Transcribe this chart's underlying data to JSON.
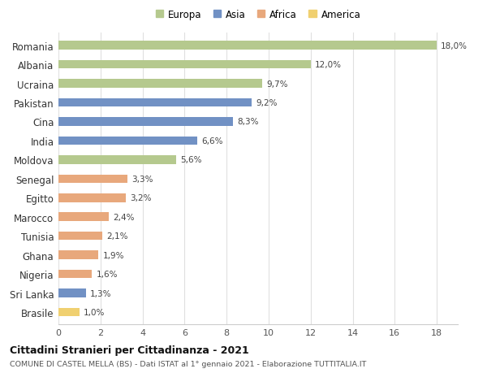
{
  "countries": [
    "Romania",
    "Albania",
    "Ucraina",
    "Pakistan",
    "Cina",
    "India",
    "Moldova",
    "Senegal",
    "Egitto",
    "Marocco",
    "Tunisia",
    "Ghana",
    "Nigeria",
    "Sri Lanka",
    "Brasile"
  ],
  "values": [
    18.0,
    12.0,
    9.7,
    9.2,
    8.3,
    6.6,
    5.6,
    3.3,
    3.2,
    2.4,
    2.1,
    1.9,
    1.6,
    1.3,
    1.0
  ],
  "continents": [
    "Europa",
    "Europa",
    "Europa",
    "Asia",
    "Asia",
    "Asia",
    "Europa",
    "Africa",
    "Africa",
    "Africa",
    "Africa",
    "Africa",
    "Africa",
    "Asia",
    "America"
  ],
  "colors": {
    "Europa": "#b5c98e",
    "Asia": "#7191c4",
    "Africa": "#e8a87c",
    "America": "#f0d070"
  },
  "legend_order": [
    "Europa",
    "Asia",
    "Africa",
    "America"
  ],
  "title_bold": "Cittadini Stranieri per Cittadinanza - 2021",
  "subtitle": "COMUNE DI CASTEL MELLA (BS) - Dati ISTAT al 1° gennaio 2021 - Elaborazione TUTTITALIA.IT",
  "xlim": [
    0,
    19
  ],
  "xticks": [
    0,
    2,
    4,
    6,
    8,
    10,
    12,
    14,
    16,
    18
  ],
  "background_color": "#ffffff",
  "grid_color": "#e0e0e0",
  "bar_height": 0.45,
  "figsize": [
    6.0,
    4.6
  ],
  "dpi": 100
}
